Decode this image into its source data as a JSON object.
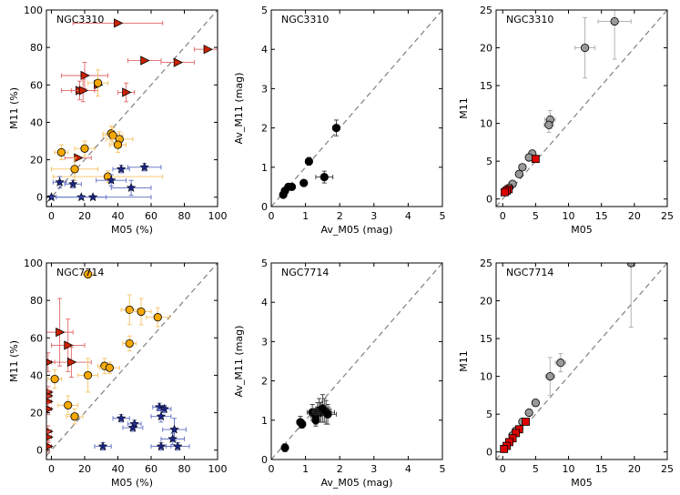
{
  "chart_data": [
    {
      "type": "scatter",
      "title": "NGC3310",
      "xlabel": "M05 (%)",
      "ylabel": "M11 (%)",
      "xlim": [
        -3,
        100
      ],
      "ylim": [
        -5,
        100
      ],
      "xticks": [
        0,
        20,
        40,
        60,
        80,
        100
      ],
      "yticks": [
        0,
        20,
        40,
        60,
        80,
        100
      ],
      "one_to_one_line": true,
      "series": [
        {
          "name": "red-triangles",
          "marker": "triangle-right",
          "color": "#cc2200",
          "errcolor": "#e06666",
          "points": [
            [
              40,
              93,
              27,
              0
            ],
            [
              56,
              73,
              10,
              0
            ],
            [
              76,
              72,
              10,
              0
            ],
            [
              94,
              79,
              8,
              0
            ],
            [
              20,
              65,
              14,
              7
            ],
            [
              28,
              60,
              0,
              0
            ],
            [
              17,
              57,
              11,
              5
            ],
            [
              19,
              57,
              7,
              6
            ],
            [
              45,
              56,
              5,
              5
            ],
            [
              16,
              21,
              8,
              0
            ]
          ]
        },
        {
          "name": "orange-circles",
          "marker": "circle",
          "color": "#f5a800",
          "errcolor": "#f5c060",
          "points": [
            [
              28,
              61,
              6,
              7
            ],
            [
              36,
              34,
              5,
              4
            ],
            [
              37,
              33,
              6,
              4
            ],
            [
              41,
              31,
              8,
              4
            ],
            [
              40,
              28,
              5,
              4
            ],
            [
              20,
              26,
              6,
              4
            ],
            [
              6,
              24,
              4,
              4
            ],
            [
              14,
              15,
              14,
              6
            ],
            [
              34,
              11,
              33,
              3
            ]
          ]
        },
        {
          "name": "blue-stars",
          "marker": "star",
          "color": "#1a237e",
          "errcolor": "#5c6bc0",
          "points": [
            [
              5,
              8,
              4,
              3
            ],
            [
              13,
              7,
              5,
              2
            ],
            [
              36,
              9,
              9,
              3
            ],
            [
              42,
              15,
              5,
              2
            ],
            [
              56,
              16,
              10,
              2
            ],
            [
              48,
              5,
              12,
              4
            ],
            [
              0,
              0,
              0,
              0
            ],
            [
              18,
              0,
              15,
              0
            ],
            [
              25,
              0,
              35,
              0
            ]
          ]
        }
      ]
    },
    {
      "type": "scatter",
      "title": "NGC3310",
      "xlabel": "Av_M05 (mag)",
      "ylabel": "Av_M11 (mag)",
      "xlim": [
        0,
        5
      ],
      "ylim": [
        0,
        5
      ],
      "xticks": [
        0,
        1,
        2,
        3,
        4,
        5
      ],
      "yticks": [
        0,
        1,
        2,
        3,
        4,
        5
      ],
      "one_to_one_line": true,
      "series": [
        {
          "name": "black-circles",
          "marker": "circle",
          "color": "#000000",
          "errcolor": "#333333",
          "points": [
            [
              1.9,
              2.0,
              0.1,
              0.2
            ],
            [
              1.1,
              1.15,
              0.1,
              0.1
            ],
            [
              1.55,
              0.75,
              0.25,
              0.15
            ],
            [
              0.95,
              0.6,
              0.05,
              0.05
            ],
            [
              0.6,
              0.5,
              0.05,
              0.05
            ],
            [
              0.5,
              0.5,
              0.05,
              0.05
            ],
            [
              0.4,
              0.4,
              0.05,
              0.05
            ],
            [
              0.35,
              0.3,
              0.05,
              0.05
            ]
          ]
        }
      ]
    },
    {
      "type": "scatter",
      "title": "NGC3310",
      "xlabel": "M05",
      "ylabel": "M11",
      "xlim": [
        -1,
        25
      ],
      "ylim": [
        -1,
        25
      ],
      "xticks": [
        0,
        5,
        10,
        15,
        20,
        25
      ],
      "yticks": [
        0,
        5,
        10,
        15,
        20,
        25
      ],
      "one_to_one_line": true,
      "series": [
        {
          "name": "grey-circles",
          "marker": "circle",
          "color": "#999999",
          "errcolor": "#aaaaaa",
          "points": [
            [
              17,
              23.5,
              2.5,
              5
            ],
            [
              12.5,
              20,
              1.5,
              4
            ],
            [
              7.2,
              10.5,
              0.8,
              1.2
            ],
            [
              7,
              9.8,
              0.7,
              1
            ],
            [
              4.5,
              6,
              0.5,
              0.5
            ],
            [
              4,
              5.5,
              0.3,
              0.3
            ],
            [
              3,
              4.2,
              0.3,
              0.3
            ],
            [
              2.5,
              3.3,
              0.3,
              0.3
            ],
            [
              1.5,
              2,
              0.2,
              0.2
            ],
            [
              1,
              1.5,
              0.2,
              0.2
            ]
          ]
        },
        {
          "name": "red-squares",
          "marker": "square",
          "color": "#dd0000",
          "errcolor": "#dd0000",
          "points": [
            [
              5,
              5.3,
              0.2,
              0.2
            ],
            [
              0.9,
              1.3,
              0.1,
              0.1
            ],
            [
              0.6,
              1.1,
              0.1,
              0.1
            ],
            [
              0.3,
              0.9,
              0.1,
              0.1
            ]
          ]
        }
      ]
    },
    {
      "type": "scatter",
      "title": "NGC7714",
      "xlabel": "M05 (%)",
      "ylabel": "M11 (%)",
      "xlim": [
        -3,
        100
      ],
      "ylim": [
        -5,
        100
      ],
      "xticks": [
        0,
        20,
        40,
        60,
        80,
        100
      ],
      "yticks": [
        0,
        20,
        40,
        60,
        80,
        100
      ],
      "one_to_one_line": true,
      "series": [
        {
          "name": "red-triangles",
          "marker": "triangle-right",
          "color": "#cc2200",
          "errcolor": "#e06666",
          "points": [
            [
              5,
              63,
              8,
              18
            ],
            [
              10,
              56,
              10,
              14
            ],
            [
              12,
              47,
              12,
              8
            ],
            [
              -2,
              47,
              4,
              5
            ],
            [
              -2,
              31,
              2,
              3
            ],
            [
              -2,
              29,
              2,
              3
            ],
            [
              -2,
              26,
              2,
              3
            ],
            [
              -2,
              22,
              2,
              3
            ],
            [
              -2,
              10,
              2,
              3
            ],
            [
              -2,
              7,
              2,
              3
            ],
            [
              -2,
              2,
              2,
              3
            ]
          ]
        },
        {
          "name": "orange-circles",
          "marker": "circle",
          "color": "#f5a800",
          "errcolor": "#f5c060",
          "points": [
            [
              22,
              94,
              3,
              2
            ],
            [
              47,
              75,
              5,
              8
            ],
            [
              54,
              74,
              6,
              7
            ],
            [
              64,
              71,
              7,
              5
            ],
            [
              47,
              57,
              4,
              4
            ],
            [
              32,
              45,
              4,
              4
            ],
            [
              35,
              44,
              6,
              3
            ],
            [
              22,
              40,
              6,
              9
            ],
            [
              2,
              38,
              4,
              5
            ],
            [
              10,
              24,
              6,
              5
            ],
            [
              14,
              18,
              5,
              4
            ]
          ]
        },
        {
          "name": "blue-stars",
          "marker": "star",
          "color": "#1a237e",
          "errcolor": "#5c6bc0",
          "points": [
            [
              65,
              23,
              4,
              2
            ],
            [
              68,
              22,
              4,
              2
            ],
            [
              66,
              18,
              6,
              3
            ],
            [
              42,
              17,
              5,
              2
            ],
            [
              50,
              14,
              4,
              2
            ],
            [
              49,
              12,
              6,
              2
            ],
            [
              74,
              11,
              7,
              6
            ],
            [
              73,
              6,
              7,
              3
            ],
            [
              66,
              2,
              6,
              2
            ],
            [
              76,
              2,
              7,
              2
            ],
            [
              31,
              2,
              5,
              2
            ]
          ]
        }
      ]
    },
    {
      "type": "scatter",
      "title": "NGC7714",
      "xlabel": "Av_M05 (mag)",
      "ylabel": "Av_M11 (mag)",
      "xlim": [
        0,
        5
      ],
      "ylim": [
        0,
        5
      ],
      "xticks": [
        0,
        1,
        2,
        3,
        4,
        5
      ],
      "yticks": [
        0,
        1,
        2,
        3,
        4,
        5
      ],
      "one_to_one_line": true,
      "series": [
        {
          "name": "black-circles",
          "marker": "circle",
          "color": "#000000",
          "errcolor": "#333333",
          "points": [
            [
              0.4,
              0.3,
              0.05,
              0.1
            ],
            [
              0.85,
              0.95,
              0.1,
              0.15
            ],
            [
              0.9,
              0.9,
              0.1,
              0.1
            ],
            [
              1.2,
              1.2,
              0.15,
              0.2
            ],
            [
              1.3,
              1.1,
              0.15,
              0.2
            ],
            [
              1.35,
              1.2,
              0.15,
              0.25
            ],
            [
              1.4,
              1.25,
              0.2,
              0.3
            ],
            [
              1.45,
              1.2,
              0.2,
              0.25
            ],
            [
              1.5,
              1.3,
              0.2,
              0.35
            ],
            [
              1.55,
              1.25,
              0.2,
              0.3
            ],
            [
              1.6,
              1.2,
              0.25,
              0.3
            ],
            [
              1.65,
              1.15,
              0.25,
              0.25
            ],
            [
              1.3,
              1.0,
              0.1,
              0.15
            ]
          ]
        }
      ]
    },
    {
      "type": "scatter",
      "title": "NGC7714",
      "xlabel": "M05",
      "ylabel": "M11",
      "xlim": [
        -1,
        25
      ],
      "ylim": [
        -1,
        25
      ],
      "xticks": [
        0,
        5,
        10,
        15,
        20,
        25
      ],
      "yticks": [
        0,
        5,
        10,
        15,
        20,
        25
      ],
      "one_to_one_line": true,
      "series": [
        {
          "name": "grey-circles",
          "marker": "circle",
          "color": "#999999",
          "errcolor": "#aaaaaa",
          "points": [
            [
              19.5,
              25,
              0.2,
              8.5
            ],
            [
              8.8,
              11.8,
              0.8,
              1.2
            ],
            [
              7.2,
              10,
              0.7,
              2.5
            ],
            [
              5,
              6.5,
              0.5,
              0.5
            ],
            [
              4,
              5.2,
              0.3,
              0.3
            ],
            [
              3,
              4,
              0.3,
              0.3
            ],
            [
              2,
              2.8,
              0.2,
              0.3
            ],
            [
              1.5,
              2.2,
              0.2,
              0.2
            ]
          ]
        },
        {
          "name": "red-squares",
          "marker": "square",
          "color": "#dd0000",
          "errcolor": "#dd0000",
          "points": [
            [
              3.5,
              4,
              0.2,
              0.2
            ],
            [
              2.5,
              3,
              0.2,
              0.2
            ],
            [
              2,
              2.5,
              0.2,
              0.2
            ],
            [
              1.5,
              1.8,
              0.1,
              0.1
            ],
            [
              1,
              1.3,
              0.1,
              0.1
            ],
            [
              0.6,
              0.8,
              0.1,
              0.1
            ],
            [
              0.2,
              0.4,
              0.1,
              0.1
            ]
          ]
        }
      ]
    }
  ]
}
